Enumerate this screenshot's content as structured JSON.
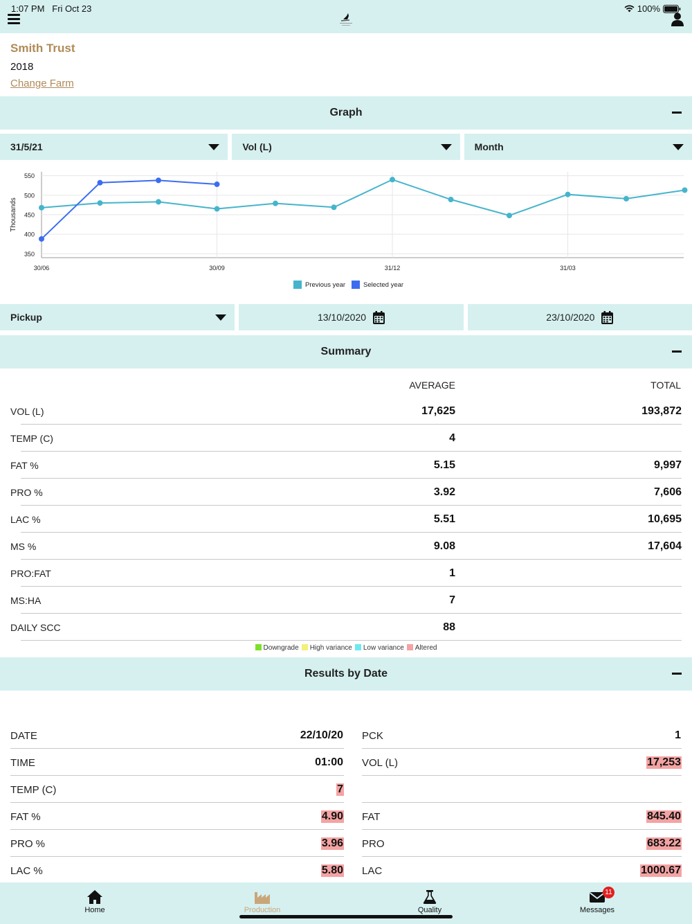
{
  "status": {
    "time": "1:07 PM",
    "date": "Fri Oct 23",
    "battery": "100%"
  },
  "farm": {
    "name": "Smith Trust",
    "year": "2018",
    "change_label": "Change Farm"
  },
  "graph": {
    "title": "Graph",
    "filters": {
      "date": "31/5/21",
      "measure": "Vol (L)",
      "period": "Month"
    }
  },
  "chart_data": {
    "type": "line",
    "ylabel": "Thousands",
    "x_ticks": [
      "30/06",
      "30/09",
      "31/12",
      "31/03"
    ],
    "y_ticks": [
      "550",
      "500",
      "450",
      "400",
      "350"
    ],
    "ylim": [
      340,
      560
    ],
    "series": [
      {
        "name": "Previous year",
        "color": "#46b4cc",
        "values": [
          468,
          480,
          483,
          465,
          479,
          469,
          540,
          489,
          448,
          502,
          491,
          513
        ]
      },
      {
        "name": "Selected year",
        "color": "#3c6df0",
        "values": [
          388,
          532,
          538,
          528
        ]
      }
    ],
    "legend": "bottom-center"
  },
  "pickup": {
    "label": "Pickup",
    "from": "13/10/2020",
    "to": "23/10/2020"
  },
  "summary": {
    "title": "Summary",
    "col_avg": "AVERAGE",
    "col_total": "TOTAL",
    "rows": [
      {
        "label": "VOL (L)",
        "avg": "17,625",
        "total": "193,872"
      },
      {
        "label": "TEMP (C)",
        "avg": "4",
        "total": ""
      },
      {
        "label": "FAT  %",
        "avg": "5.15",
        "total": "9,997"
      },
      {
        "label": "PRO  %",
        "avg": "3.92",
        "total": "7,606"
      },
      {
        "label": "LAC  %",
        "avg": "5.51",
        "total": "10,695"
      },
      {
        "label": "MS  %",
        "avg": "9.08",
        "total": "17,604"
      },
      {
        "label": "PRO:FAT",
        "avg": "1",
        "total": ""
      },
      {
        "label": "MS:HA",
        "avg": "7",
        "total": ""
      },
      {
        "label": "DAILY SCC",
        "avg": "88",
        "total": ""
      }
    ]
  },
  "legend_keys": [
    {
      "label": "Downgrade",
      "color": "#7ee02a"
    },
    {
      "label": "High variance",
      "color": "#f4f07a"
    },
    {
      "label": "Low variance",
      "color": "#6fe8f0"
    },
    {
      "label": "Altered",
      "color": "#f4a3a3"
    }
  ],
  "results": {
    "title": "Results by Date",
    "left": [
      {
        "label": "DATE",
        "value": "22/10/20",
        "altered": false
      },
      {
        "label": "TIME",
        "value": "01:00",
        "altered": false
      },
      {
        "label": "TEMP (C)",
        "value": "7",
        "altered": true
      },
      {
        "label": "FAT  %",
        "value": "4.90",
        "altered": true
      },
      {
        "label": "PRO  %",
        "value": "3.96",
        "altered": true
      },
      {
        "label": "LAC  %",
        "value": "5.80",
        "altered": true
      }
    ],
    "right": [
      {
        "label": "PCK",
        "value": "1",
        "altered": false
      },
      {
        "label": "VOL (L)",
        "value": "17,253",
        "altered": true
      },
      {
        "label": "",
        "value": "",
        "altered": false
      },
      {
        "label": "FAT",
        "value": "845.40",
        "altered": true
      },
      {
        "label": "PRO",
        "value": "683.22",
        "altered": true
      },
      {
        "label": "LAC",
        "value": "1000.67",
        "altered": true
      }
    ]
  },
  "tabs": [
    {
      "label": "Home",
      "icon": "home-icon"
    },
    {
      "label": "Production",
      "icon": "factory-icon"
    },
    {
      "label": "Quality",
      "icon": "flask-icon"
    },
    {
      "label": "Messages",
      "icon": "envelope-icon",
      "badge": "11"
    }
  ]
}
